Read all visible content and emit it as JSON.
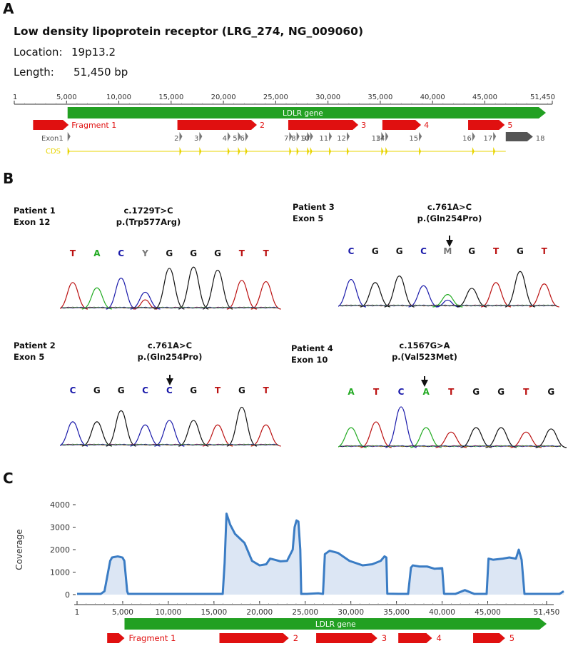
{
  "panels": {
    "a": "A",
    "b": "B",
    "c": "C"
  },
  "panel_a": {
    "title": "Low density lipoprotein receptor (LRG_274, NG_009060)",
    "location_label": "Location:",
    "location_value": "19p13.2",
    "length_label": "Length:",
    "length_value": "51,450 bp",
    "axis_ticks": [
      "1",
      "5,000",
      "10,000",
      "15,000",
      "20,000",
      "25,000",
      "30,000",
      "35,000",
      "40,000",
      "45,000",
      "51,450"
    ],
    "gene_label": "LDLR gene",
    "fragment_labels": [
      "Fragment 1",
      "2",
      "3",
      "4",
      "5"
    ],
    "exon_track_label": "Exon",
    "cds_track_label": "CDS",
    "exon_labels": [
      "1",
      "2",
      "3",
      "4",
      "5",
      "6",
      "7",
      "8",
      "9",
      "10",
      "11",
      "12",
      "13",
      "14",
      "15",
      "16",
      "17",
      "18"
    ]
  },
  "panel_b": [
    {
      "patient": "Patient 1",
      "exon": "Exon 12",
      "cdna": "c.1729T>C",
      "protein": "p.(Trp577Arg)",
      "bases": [
        "T",
        "A",
        "C",
        "Y",
        "G",
        "G",
        "G",
        "T",
        "T"
      ]
    },
    {
      "patient": "Patient 3",
      "exon": "Exon 5",
      "cdna": "c.761A>C",
      "protein": "p.(Gln254Pro)",
      "bases": [
        "C",
        "G",
        "G",
        "C",
        "M",
        "G",
        "T",
        "G",
        "T"
      ]
    },
    {
      "patient": "Patient 2",
      "exon": "Exon 5",
      "cdna": "c.761A>C",
      "protein": "p.(Gln254Pro)",
      "bases": [
        "C",
        "G",
        "G",
        "C",
        "C",
        "G",
        "T",
        "G",
        "T"
      ]
    },
    {
      "patient": "Patient 4",
      "exon": "Exon 10",
      "cdna": "c.1567G>A",
      "protein": "p.(Val523Met)",
      "bases": [
        "A",
        "T",
        "C",
        "A",
        "T",
        "G",
        "G",
        "T",
        "G"
      ]
    }
  ],
  "colors": {
    "A": "#22aa22",
    "C": "#1a1aaa",
    "G": "#111111",
    "T": "#bb1111",
    "Y": "#777777",
    "M": "#777777",
    "gene": "#22a022",
    "fragment": "#e01010",
    "coverage": "#3a7cc4",
    "coverage_fill": "#dce6f4",
    "cds": "#e8d400",
    "exon": "#777777"
  },
  "chart_data": {
    "type": "area",
    "title": "",
    "ylabel": "Coverage",
    "xlabel": "",
    "ylim": [
      0,
      4000
    ],
    "xlim": [
      1,
      51450
    ],
    "yticks": [
      "0",
      "1000",
      "2000",
      "3000",
      "4000"
    ],
    "xticks": [
      "1",
      "5,000",
      "10,000",
      "15,000",
      "20,000",
      "25,000",
      "30,000",
      "35,000",
      "40,000",
      "45,000",
      "51,450"
    ],
    "x": [
      1,
      2500,
      2900,
      3500,
      3700,
      4300,
      4800,
      5000,
      5300,
      5400,
      8000,
      11000,
      14000,
      15000,
      15400,
      15600,
      15800,
      16200,
      16700,
      17200,
      17700,
      18500,
      19300,
      20000,
      20400,
      20900,
      21500,
      22200,
      22800,
      23000,
      23200,
      23400,
      23600,
      23700,
      24300,
      25500,
      26000,
      26200,
      26700,
      27600,
      28800,
      30200,
      31200,
      32100,
      32500,
      32700,
      32800,
      34000,
      35000,
      35300,
      35500,
      36200,
      37000,
      37800,
      38600,
      38800,
      38900,
      40000,
      41000,
      42000,
      43300,
      43500,
      44000,
      45000,
      45700,
      46400,
      46700,
      47000,
      47300,
      48000,
      50000,
      51000,
      51450
    ],
    "y": [
      30,
      30,
      150,
      1500,
      1650,
      1700,
      1650,
      1500,
      150,
      30,
      30,
      30,
      30,
      30,
      30,
      1400,
      3600,
      3100,
      2700,
      2500,
      2300,
      1500,
      1300,
      1350,
      1600,
      1550,
      1480,
      1500,
      2000,
      3000,
      3300,
      3250,
      2000,
      30,
      30,
      60,
      30,
      1800,
      1950,
      1850,
      1500,
      1300,
      1350,
      1500,
      1700,
      1650,
      40,
      30,
      30,
      1200,
      1300,
      1250,
      1250,
      1150,
      1180,
      40,
      30,
      30,
      200,
      30,
      30,
      1600,
      1550,
      1600,
      1650,
      1600,
      2000,
      1550,
      30,
      30,
      30,
      30,
      150
    ],
    "fragments": [
      {
        "label": "Fragment 1",
        "start": 3300,
        "end": 5200
      },
      {
        "label": "2",
        "start": 15600,
        "end": 23200
      },
      {
        "label": "3",
        "start": 26200,
        "end": 32900
      },
      {
        "label": "4",
        "start": 35200,
        "end": 38900
      },
      {
        "label": "5",
        "start": 43400,
        "end": 46900
      }
    ],
    "gene_label": "LDLR gene"
  }
}
